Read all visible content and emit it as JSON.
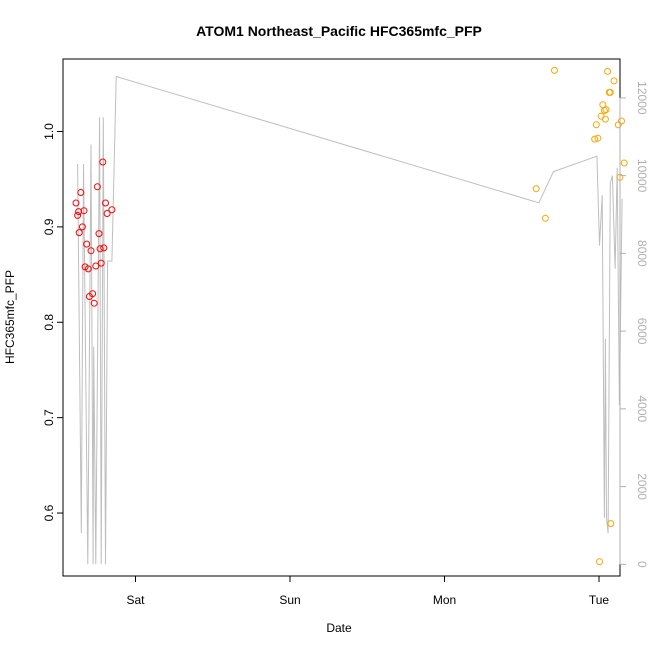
{
  "chart_data": {
    "type": "scatter",
    "title": "ATOM1 Northeast_Pacific HFC365mfc_PFP",
    "xlabel": "Date",
    "ylabel": "HFC365mfc_PFP",
    "x_ticks": [
      "Sat",
      "Sun",
      "Mon",
      "Tue"
    ],
    "xlim": [
      "Fri 14:00",
      "Tue 04:00"
    ],
    "ylim": [
      0.534,
      1.076
    ],
    "y_ticks": [
      "0.6",
      "0.7",
      "0.8",
      "0.9",
      "1.0"
    ],
    "y2lim": [
      -300,
      13000
    ],
    "y2_ticks": [
      "0",
      "2000",
      "4000",
      "6000",
      "8000",
      "10000",
      "12000"
    ],
    "colors": {
      "series_red": "#ff0000",
      "series_orange": "#ffa500",
      "altitude_line": "#bebebe"
    },
    "series": [
      {
        "color": "red",
        "points": [
          {
            "x": "Fri 14:45",
            "y": 0.925
          },
          {
            "x": "Fri 15:00",
            "y": 0.912
          },
          {
            "x": "Fri 15:10",
            "y": 0.916
          },
          {
            "x": "Fri 15:15",
            "y": 0.894
          },
          {
            "x": "Fri 15:30",
            "y": 0.936
          },
          {
            "x": "Fri 15:45",
            "y": 0.9
          },
          {
            "x": "Fri 16:00",
            "y": 0.917
          },
          {
            "x": "Fri 16:10",
            "y": 0.858
          },
          {
            "x": "Fri 16:25",
            "y": 0.882
          },
          {
            "x": "Fri 16:40",
            "y": 0.856
          },
          {
            "x": "Fri 16:50",
            "y": 0.827
          },
          {
            "x": "Fri 17:05",
            "y": 0.875
          },
          {
            "x": "Fri 17:20",
            "y": 0.83
          },
          {
            "x": "Fri 17:35",
            "y": 0.82
          },
          {
            "x": "Fri 17:50",
            "y": 0.859
          },
          {
            "x": "Fri 18:05",
            "y": 0.942
          },
          {
            "x": "Fri 18:20",
            "y": 0.893
          },
          {
            "x": "Fri 18:30",
            "y": 0.877
          },
          {
            "x": "Fri 18:40",
            "y": 0.862
          },
          {
            "x": "Fri 18:55",
            "y": 0.968
          },
          {
            "x": "Fri 19:05",
            "y": 0.878
          },
          {
            "x": "Fri 19:20",
            "y": 0.925
          },
          {
            "x": "Fri 19:35",
            "y": 0.914
          },
          {
            "x": "Fri 20:20",
            "y": 0.918
          }
        ]
      },
      {
        "color": "orange",
        "points": [
          {
            "x": "Mon 14:15",
            "y": 0.94
          },
          {
            "x": "Mon 15:40",
            "y": 0.909
          },
          {
            "x": "Mon 17:05",
            "y": 1.064
          },
          {
            "x": "Mon 23:20",
            "y": 0.992
          },
          {
            "x": "Mon 23:35",
            "y": 1.007
          },
          {
            "x": "Mon 23:50",
            "y": 0.993
          },
          {
            "x": "Tue 00:05",
            "y": 0.549
          },
          {
            "x": "Tue 00:20",
            "y": 1.016
          },
          {
            "x": "Tue 00:35",
            "y": 1.028
          },
          {
            "x": "Tue 00:50",
            "y": 1.022
          },
          {
            "x": "Tue 01:00",
            "y": 1.013
          },
          {
            "x": "Tue 01:05",
            "y": 1.023
          },
          {
            "x": "Tue 01:20",
            "y": 1.063
          },
          {
            "x": "Tue 01:35",
            "y": 1.041
          },
          {
            "x": "Tue 01:45",
            "y": 1.041
          },
          {
            "x": "Tue 01:50",
            "y": 0.589
          },
          {
            "x": "Tue 02:20",
            "y": 1.053
          },
          {
            "x": "Tue 03:00",
            "y": 1.007
          },
          {
            "x": "Tue 03:15",
            "y": 0.952
          },
          {
            "x": "Tue 03:30",
            "y": 1.011
          },
          {
            "x": "Tue 03:55",
            "y": 0.967
          }
        ]
      }
    ],
    "altitude_line": [
      {
        "x": "Fri 15:00",
        "y": 10300
      },
      {
        "x": "Fri 15:35",
        "y": 800
      },
      {
        "x": "Fri 15:55",
        "y": 10300
      },
      {
        "x": "Fri 16:35",
        "y": 0
      },
      {
        "x": "Fri 17:05",
        "y": 10800
      },
      {
        "x": "Fri 17:25",
        "y": 0
      },
      {
        "x": "Fri 17:30",
        "y": 5600
      },
      {
        "x": "Fri 17:50",
        "y": 0
      },
      {
        "x": "Fri 18:25",
        "y": 11500
      },
      {
        "x": "Fri 18:40",
        "y": 0
      },
      {
        "x": "Fri 19:00",
        "y": 11500
      },
      {
        "x": "Fri 19:20",
        "y": 0
      },
      {
        "x": "Fri 19:40",
        "y": 7800
      },
      {
        "x": "Fri 20:20",
        "y": 7800
      },
      {
        "x": "Fri 21:00",
        "y": 12550
      },
      {
        "x": "Mon 14:40",
        "y": 9300
      },
      {
        "x": "Mon 16:55",
        "y": 10100
      },
      {
        "x": "Mon 23:40",
        "y": 10500
      },
      {
        "x": "Tue 00:05",
        "y": 8200
      },
      {
        "x": "Tue 00:30",
        "y": 9500
      },
      {
        "x": "Tue 00:50",
        "y": 1200
      },
      {
        "x": "Tue 01:00",
        "y": 5800
      },
      {
        "x": "Tue 01:10",
        "y": 1200
      },
      {
        "x": "Tue 01:25",
        "y": 800
      },
      {
        "x": "Tue 01:45",
        "y": 9800
      },
      {
        "x": "Tue 02:05",
        "y": 10000
      },
      {
        "x": "Tue 02:30",
        "y": 7600
      },
      {
        "x": "Tue 02:50",
        "y": 10200
      },
      {
        "x": "Tue 03:10",
        "y": 4100
      },
      {
        "x": "Tue 03:35",
        "y": 9400
      }
    ]
  }
}
